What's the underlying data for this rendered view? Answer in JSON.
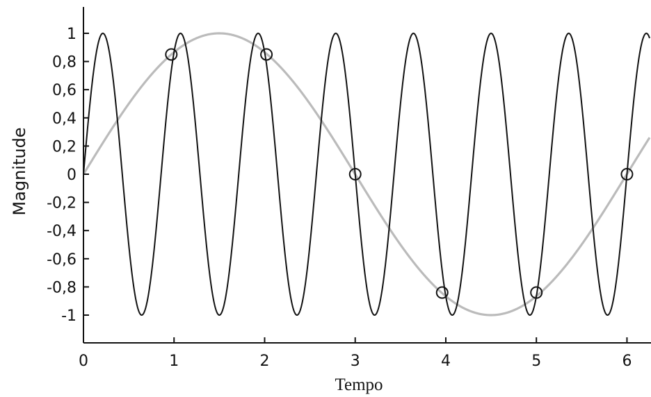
{
  "chart_data": {
    "type": "line",
    "title": "",
    "xlabel": "Tempo",
    "ylabel": "Magnitude",
    "xlim": [
      0,
      6.25
    ],
    "ylim": [
      -1.15,
      1.15
    ],
    "grid": false,
    "legend": "none",
    "x_ticks": [
      {
        "value": 0,
        "label": "0"
      },
      {
        "value": 1,
        "label": "1"
      },
      {
        "value": 2,
        "label": "2"
      },
      {
        "value": 3,
        "label": "3"
      },
      {
        "value": 4,
        "label": "4"
      },
      {
        "value": 5,
        "label": "5"
      },
      {
        "value": 6,
        "label": "6"
      }
    ],
    "y_ticks": [
      {
        "value": 1,
        "label": "1"
      },
      {
        "value": 0.8,
        "label": "0,8"
      },
      {
        "value": 0.6,
        "label": "0,6"
      },
      {
        "value": 0.4,
        "label": "0,4"
      },
      {
        "value": 0.2,
        "label": "0,2"
      },
      {
        "value": 0,
        "label": "0"
      },
      {
        "value": -0.2,
        "label": "-0,2"
      },
      {
        "value": -0.4,
        "label": "-0,4"
      },
      {
        "value": -0.6,
        "label": "-0,6"
      },
      {
        "value": -0.8,
        "label": "-0,8"
      },
      {
        "value": -1,
        "label": "-1"
      }
    ],
    "series": [
      {
        "color": "#111111",
        "function": "sine",
        "amplitude": 1,
        "frequency": 1.1667,
        "phase": 0
      },
      {
        "color": "#bbbbbb",
        "function": "sine",
        "amplitude": 1,
        "frequency": 0.1667,
        "phase": 0
      }
    ],
    "sample_markers": {
      "color": "#111111",
      "shape": "open-circle",
      "points": [
        {
          "x": 0.97,
          "y": 0.85
        },
        {
          "x": 2.02,
          "y": 0.85
        },
        {
          "x": 3.0,
          "y": 0.0
        },
        {
          "x": 3.96,
          "y": -0.84
        },
        {
          "x": 5.0,
          "y": -0.84
        },
        {
          "x": 6.0,
          "y": 0.0
        }
      ]
    }
  }
}
